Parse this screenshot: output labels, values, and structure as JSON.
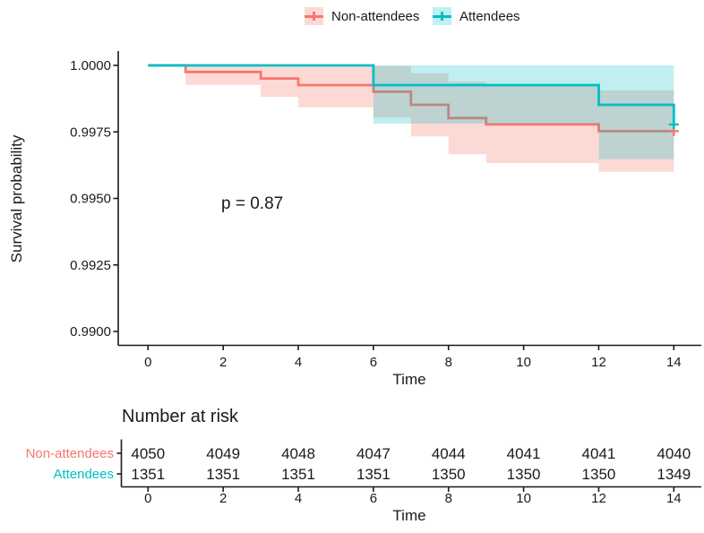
{
  "legend": {
    "items": [
      {
        "label": "Non-attendees",
        "color": "#F8766D",
        "fill": "#FBD9D5"
      },
      {
        "label": "Attendees",
        "color": "#00BFC4",
        "fill": "#C2EFF1"
      }
    ]
  },
  "chart_data": {
    "type": "line",
    "subtype": "kaplan-meier-step",
    "title": "",
    "xlabel": "Time",
    "ylabel": "Survival probability",
    "xlim": [
      0,
      14
    ],
    "ylim": [
      0.99,
      1.0
    ],
    "grid": false,
    "legend_position": "top",
    "annotation": {
      "text": "p = 0.87"
    },
    "xticks": [
      {
        "value": 0,
        "label": "0"
      },
      {
        "value": 2,
        "label": "2"
      },
      {
        "value": 4,
        "label": "4"
      },
      {
        "value": 6,
        "label": "6"
      },
      {
        "value": 8,
        "label": "8"
      },
      {
        "value": 10,
        "label": "10"
      },
      {
        "value": 12,
        "label": "12"
      },
      {
        "value": 14,
        "label": "14"
      }
    ],
    "yticks": [
      {
        "value": 1.0,
        "label": "1.0000"
      },
      {
        "value": 0.9975,
        "label": "0.9975"
      },
      {
        "value": 0.995,
        "label": "0.9950"
      },
      {
        "value": 0.9925,
        "label": "0.9925"
      },
      {
        "value": 0.99,
        "label": "0.9900"
      }
    ],
    "series": [
      {
        "name": "Non-attendees",
        "color": "#F8766D",
        "band_opacity": 0.28,
        "steps": [
          [
            0,
            1.0
          ],
          [
            1,
            0.99975
          ],
          [
            3,
            0.99951
          ],
          [
            4,
            0.99926
          ],
          [
            6,
            0.99901
          ],
          [
            7,
            0.99852
          ],
          [
            8,
            0.99802
          ],
          [
            9,
            0.99778
          ],
          [
            12,
            0.99753
          ],
          [
            14,
            0.99753
          ]
        ],
        "ci_steps": [
          [
            1,
            0.99927,
            1.0
          ],
          [
            3,
            0.99882,
            1.0
          ],
          [
            4,
            0.99842,
            1.0
          ],
          [
            6,
            0.99804,
            0.99998
          ],
          [
            7,
            0.99733,
            0.9997
          ],
          [
            8,
            0.99666,
            0.99939
          ],
          [
            9,
            0.99633,
            0.99923
          ],
          [
            12,
            0.996,
            0.99906
          ],
          [
            14,
            0.996,
            0.99906
          ]
        ],
        "censors": [
          [
            14,
            0.99753
          ]
        ]
      },
      {
        "name": "Attendees",
        "color": "#00BFC4",
        "band_opacity": 0.25,
        "steps": [
          [
            0,
            1.0
          ],
          [
            6,
            0.99926
          ],
          [
            12,
            0.99852
          ],
          [
            14,
            0.99778
          ]
        ],
        "ci_steps": [
          [
            6,
            0.99781,
            1.0
          ],
          [
            12,
            0.99647,
            1.0
          ],
          [
            14,
            0.99647,
            1.0
          ]
        ],
        "censors": [
          [
            14,
            0.99778
          ]
        ]
      }
    ]
  },
  "risk_table": {
    "title": "Number at risk",
    "xlabel": "Time",
    "times": [
      0,
      2,
      4,
      6,
      8,
      10,
      12,
      14
    ],
    "rows": [
      {
        "label": "Non-attendees",
        "color": "#F8766D",
        "values": [
          "4050",
          "4049",
          "4048",
          "4047",
          "4044",
          "4041",
          "4041",
          "4040"
        ]
      },
      {
        "label": "Attendees",
        "color": "#00BFC4",
        "values": [
          "1351",
          "1351",
          "1351",
          "1351",
          "1350",
          "1350",
          "1350",
          "1349"
        ]
      }
    ]
  }
}
